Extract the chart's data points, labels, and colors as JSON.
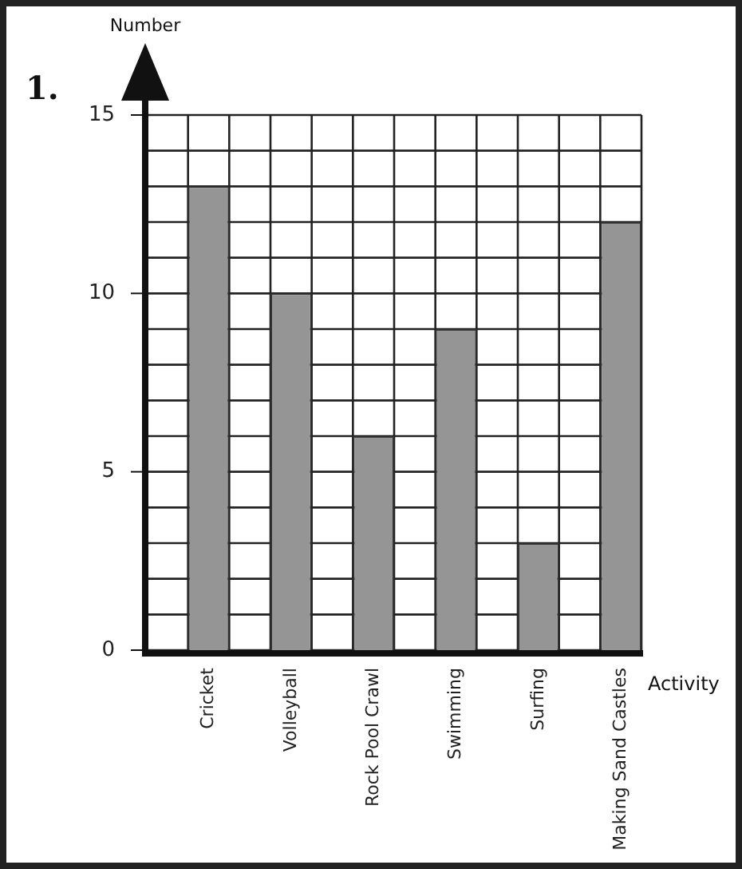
{
  "chart_data": {
    "type": "bar",
    "categories": [
      "Cricket",
      "Volleyball",
      "Rock Pool Crawl",
      "Swimming",
      "Surfing",
      "Making Sand Castles"
    ],
    "values": [
      13,
      10,
      6,
      9,
      3,
      12
    ],
    "color": "#959595",
    "xlabel": "Activity",
    "ylabel": "Number",
    "annotations": [
      "1."
    ],
    "ylim": [
      0,
      15
    ],
    "yticks": [
      0,
      {
        "value": 1,
        "label": null
      },
      {
        "value": 2,
        "label": null
      },
      {
        "value": 3,
        "label": null
      },
      {
        "value": 4,
        "label": null
      },
      5,
      {
        "value": 6,
        "label": null
      },
      {
        "value": 7,
        "label": null
      },
      {
        "value": 8,
        "label": null
      },
      {
        "value": 9,
        "label": null
      },
      10,
      {
        "value": 11,
        "label": null
      },
      {
        "value": 12,
        "label": null
      },
      {
        "value": 13,
        "label": null
      },
      {
        "value": 14,
        "label": null
      },
      15
    ],
    "grid": true,
    "legend": false
  }
}
